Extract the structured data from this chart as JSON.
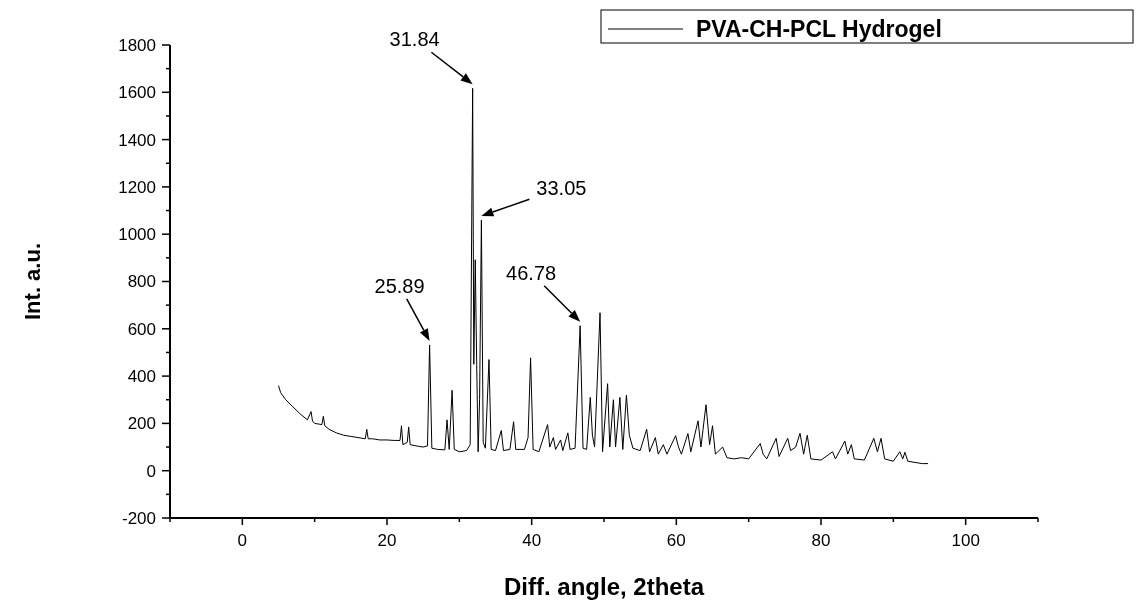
{
  "chart_data": {
    "type": "line",
    "xlabel": "Diff. angle, 2theta",
    "ylabel": "Int. a.u.",
    "xlim": [
      -10,
      110
    ],
    "xticks": [
      {
        "value": -10,
        "label": null
      },
      0,
      {
        "value": 10,
        "label": null
      },
      20,
      {
        "value": 30,
        "label": null
      },
      40,
      {
        "value": 50,
        "label": null
      },
      60,
      {
        "value": 70,
        "label": null
      },
      80,
      {
        "value": 90,
        "label": null
      },
      100,
      {
        "value": 110,
        "label": null
      }
    ],
    "ylim": [
      -200,
      1800
    ],
    "yticks": [
      -200,
      {
        "value": -100,
        "label": null
      },
      0,
      {
        "value": 100,
        "label": null
      },
      200,
      {
        "value": 300,
        "label": null
      },
      400,
      {
        "value": 500,
        "label": null
      },
      600,
      {
        "value": 700,
        "label": null
      },
      800,
      {
        "value": 900,
        "label": null
      },
      1000,
      {
        "value": 1100,
        "label": null
      },
      1200,
      {
        "value": 1300,
        "label": null
      },
      1400,
      {
        "value": 1500,
        "label": null
      },
      1600,
      {
        "value": 1700,
        "label": null
      },
      1800
    ],
    "grid": false,
    "legend": "top right",
    "line_style": "solid",
    "marker": "none",
    "annotations": [
      {
        "text": "25.89",
        "x": 25.89,
        "y": 532
      },
      {
        "text": "31.84",
        "x": 31.84,
        "y": 1617
      },
      {
        "text": "33.05",
        "x": 33.05,
        "y": 1060
      },
      {
        "text": "46.78",
        "x": 46.7,
        "y": 613
      }
    ],
    "series": [
      {
        "name": "PVA-CH-PCL Hydrogel",
        "color": "#000000",
        "x": [
          5.0,
          5.3,
          6,
          7,
          8,
          9,
          9.5,
          9.7,
          10,
          11,
          11.2,
          11.4,
          12,
          13,
          14,
          15,
          16,
          17,
          17.2,
          17.4,
          18,
          19,
          20,
          21,
          21.8,
          22.0,
          22.2,
          22.8,
          23.0,
          23.2,
          24,
          25,
          25.6,
          25.89,
          26.2,
          27,
          28,
          28.3,
          28.6,
          29.0,
          29.3,
          30,
          31,
          31.5,
          31.84,
          32.0,
          32.2,
          32.4,
          32.6,
          32.8,
          33.05,
          33.3,
          33.6,
          34.1,
          34.4,
          35,
          35.8,
          36.1,
          37,
          37.5,
          37.8,
          39,
          39.5,
          39.85,
          40.2,
          41,
          42.2,
          42.5,
          43,
          43.3,
          44,
          44.3,
          45,
          45.3,
          46,
          46.7,
          47.1,
          47.6,
          48.1,
          48.4,
          48.7,
          49.45,
          49.8,
          50.5,
          50.8,
          51.3,
          51.6,
          52.2,
          52.6,
          53.1,
          53.5,
          54,
          55,
          55.9,
          56.3,
          57.1,
          57.5,
          58.2,
          58.7,
          59.9,
          60.3,
          60.7,
          61.6,
          62,
          63.0,
          63.4,
          64.1,
          64.6,
          65.0,
          65.4,
          66.4,
          67,
          68,
          69,
          70,
          71.6,
          72,
          72.5,
          73.8,
          74.2,
          75.4,
          75.8,
          76.5,
          77.1,
          77.6,
          78.1,
          78.6,
          80,
          81.6,
          82,
          83.3,
          83.7,
          84.2,
          84.6,
          86,
          87.3,
          87.8,
          88.3,
          88.8,
          90,
          90.9,
          91.3,
          91.6,
          92,
          93,
          94,
          94.8
        ],
        "values": [
          360,
          330,
          300,
          270,
          240,
          215,
          250,
          210,
          200,
          195,
          230,
          190,
          175,
          160,
          150,
          145,
          140,
          135,
          175,
          135,
          135,
          130,
          130,
          128,
          128,
          190,
          110,
          120,
          185,
          110,
          105,
          100,
          105,
          532,
          95,
          90,
          88,
          215,
          90,
          340,
          90,
          80,
          85,
          110,
          1617,
          450,
          892,
          450,
          80,
          300,
          1060,
          120,
          95,
          470,
          90,
          85,
          170,
          85,
          90,
          207,
          90,
          90,
          140,
          477,
          90,
          80,
          195,
          100,
          140,
          90,
          130,
          85,
          160,
          90,
          95,
          613,
          95,
          90,
          310,
          150,
          100,
          668,
          80,
          368,
          100,
          300,
          100,
          310,
          90,
          320,
          150,
          95,
          85,
          175,
          80,
          140,
          70,
          110,
          70,
          148,
          100,
          70,
          157,
          80,
          211,
          100,
          279,
          110,
          190,
          70,
          100,
          55,
          50,
          55,
          50,
          115,
          70,
          50,
          137,
          60,
          137,
          85,
          100,
          158,
          70,
          150,
          50,
          45,
          80,
          50,
          125,
          70,
          110,
          50,
          45,
          137,
          80,
          137,
          50,
          40,
          80,
          50,
          78,
          40,
          35,
          30,
          30
        ]
      }
    ]
  }
}
